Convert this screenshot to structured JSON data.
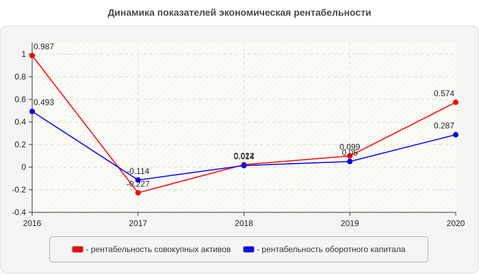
{
  "header": {
    "title": "Динамика показателей экономическая рентабельности"
  },
  "legend": {
    "items": [
      {
        "label": "- рентабельность совокупных активов",
        "color": "#ff0000"
      },
      {
        "label": "- рентабельность оборотного капитала",
        "color": "#0000ff"
      }
    ]
  },
  "chart_data": {
    "type": "line",
    "title": "Динамика показателей экономическая рентабельности",
    "xlabel": "",
    "ylabel": "",
    "x": [
      "2016",
      "2017",
      "2018",
      "2019",
      "2020"
    ],
    "series": [
      {
        "name": "рентабельность совокупных активов",
        "color": "#ff0000",
        "values": [
          0.987,
          -0.227,
          0.022,
          0.099,
          0.574
        ],
        "labels": [
          "0.987",
          "-0.227",
          "0.022",
          "0.099",
          "0.574"
        ]
      },
      {
        "name": "рентабельность оборотного капитала",
        "color": "#0000ff",
        "values": [
          0.493,
          -0.114,
          0.014,
          0.05,
          0.287
        ],
        "labels": [
          "0.493",
          "-0.114",
          "0.014",
          "0.05",
          "0.287"
        ]
      }
    ],
    "yticks": [
      "-0.4",
      "-0.2",
      "0",
      "0.2",
      "0.4",
      "0.6",
      "0.8",
      "1"
    ],
    "ylim": [
      -0.4,
      1.1
    ],
    "grid": true,
    "legend_position": "bottom"
  }
}
